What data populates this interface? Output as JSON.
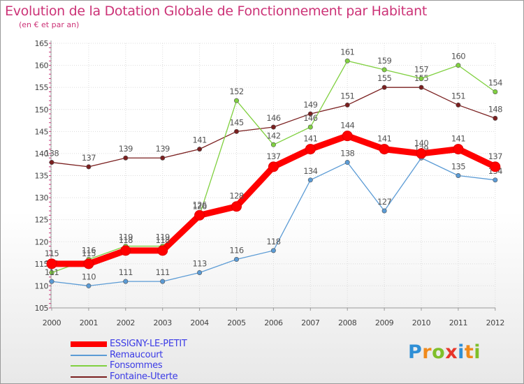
{
  "title": "Evolution de la Dotation Globale de Fonctionnement par Habitant",
  "subtitle": "(en € et par an)",
  "logo": {
    "letters": [
      "P",
      "r",
      "o",
      "x",
      "i",
      "t",
      "i"
    ],
    "colors": [
      "#2f8fd6",
      "#f08a1c",
      "#7fbf2a",
      "#e8352a",
      "#2f8fd6",
      "#f08a1c",
      "#7fbf2a"
    ]
  },
  "chart_data": {
    "type": "line",
    "title": "Evolution de la Dotation Globale de Fonctionnement par Habitant",
    "subtitle": "(en € et par an)",
    "xlabel": "",
    "ylabel": "",
    "ylim": [
      105,
      165
    ],
    "yticks": [
      105,
      110,
      115,
      120,
      125,
      130,
      135,
      140,
      145,
      150,
      155,
      160,
      165
    ],
    "grid": true,
    "legend_position": "bottom-left",
    "x": [
      "2000",
      "2001",
      "2002",
      "2003",
      "2004",
      "2005",
      "2006",
      "2007",
      "2008",
      "2009",
      "2010",
      "2011",
      "2012"
    ],
    "series": [
      {
        "name": "Fontaine-Uterte",
        "color": "#7a1f1f",
        "values": [
          138,
          137,
          139,
          139,
          141,
          145,
          146,
          149,
          151,
          155,
          155,
          151,
          148
        ]
      },
      {
        "name": "Fonsommes",
        "color": "#80d040",
        "values": [
          113,
          116,
          119,
          119,
          126,
          152,
          142,
          146,
          161,
          159,
          157,
          160,
          154
        ]
      },
      {
        "name": "Remaucourt",
        "color": "#5b9bd5",
        "values": [
          111,
          110,
          111,
          111,
          113,
          116,
          118,
          134,
          138,
          127,
          139,
          135,
          134
        ]
      },
      {
        "name": "ESSIGNY-LE-PETIT",
        "color": "#ff0000",
        "values": [
          115,
          115,
          118,
          118,
          126,
          128,
          137,
          141,
          144,
          141,
          140,
          141,
          137
        ]
      }
    ],
    "legend_order": [
      "ESSIGNY-LE-PETIT",
      "Remaucourt",
      "Fonsommes",
      "Fontaine-Uterte"
    ]
  }
}
